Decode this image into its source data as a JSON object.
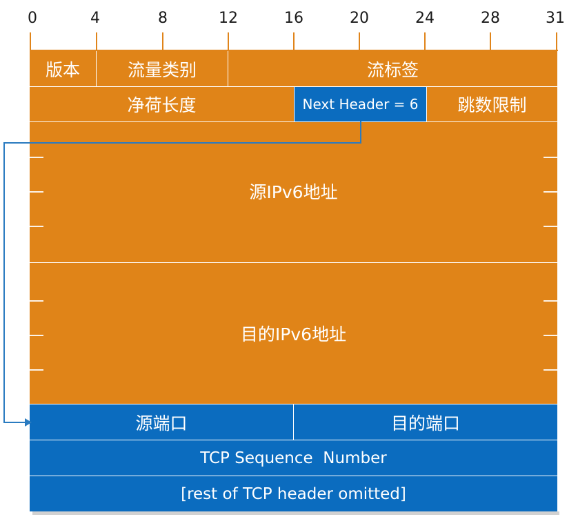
{
  "bit_ruler": [
    "0",
    "4",
    "8",
    "12",
    "16",
    "20",
    "24",
    "28",
    "31"
  ],
  "ipv6": {
    "version": "版本",
    "traffic_class": "流量类别",
    "flow_label": "流标签",
    "payload_length": "净荷长度",
    "next_header": "Next Header = 6",
    "hop_limit": "跳数限制",
    "source_address": "源IPv6地址",
    "destination_address": "目的IPv6地址"
  },
  "tcp": {
    "source_port": "源端口",
    "destination_port": "目的端口",
    "sequence_number": "TCP Sequence  Number",
    "rest": "[rest of TCP header omitted]"
  },
  "colors": {
    "ipv6_fill": "#e08418",
    "tcp_fill": "#0b6cbf",
    "connector": "#2a7bc0"
  }
}
